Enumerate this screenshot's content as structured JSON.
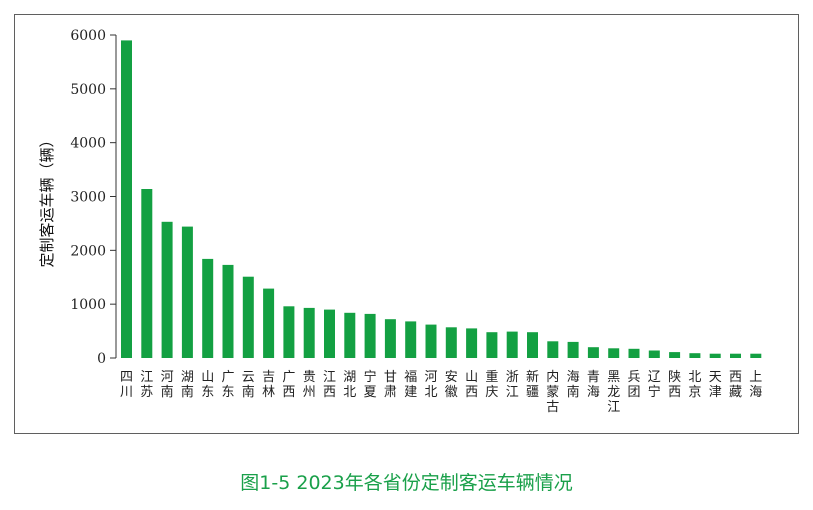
{
  "caption": "图1-5  2023年各省份定制客运车辆情况",
  "colors": {
    "bar": "#13a042",
    "caption": "#1aa04a",
    "frame": "#5f5f5f"
  },
  "chart_data": {
    "type": "bar",
    "ylabel": "定制客运车辆（辆）",
    "ylim": [
      0,
      6000
    ],
    "yticks": [
      0,
      1000,
      2000,
      3000,
      4000,
      5000,
      6000
    ],
    "grid": false,
    "categories": [
      "四川",
      "江苏",
      "河南",
      "湖南",
      "山东",
      "广东",
      "云南",
      "吉林",
      "广西",
      "贵州",
      "江西",
      "湖北",
      "宁夏",
      "甘肃",
      "福建",
      "河北",
      "安徽",
      "山西",
      "重庆",
      "浙江",
      "新疆",
      "内蒙古",
      "海南",
      "青海",
      "黑龙江",
      "兵团",
      "辽宁",
      "陕西",
      "北京",
      "天津",
      "西藏",
      "上海"
    ],
    "values": [
      5900,
      3140,
      2530,
      2440,
      1840,
      1730,
      1510,
      1290,
      960,
      930,
      900,
      840,
      820,
      720,
      680,
      620,
      570,
      550,
      480,
      490,
      480,
      310,
      300,
      200,
      180,
      170,
      140,
      110,
      90,
      80,
      80,
      80
    ]
  }
}
